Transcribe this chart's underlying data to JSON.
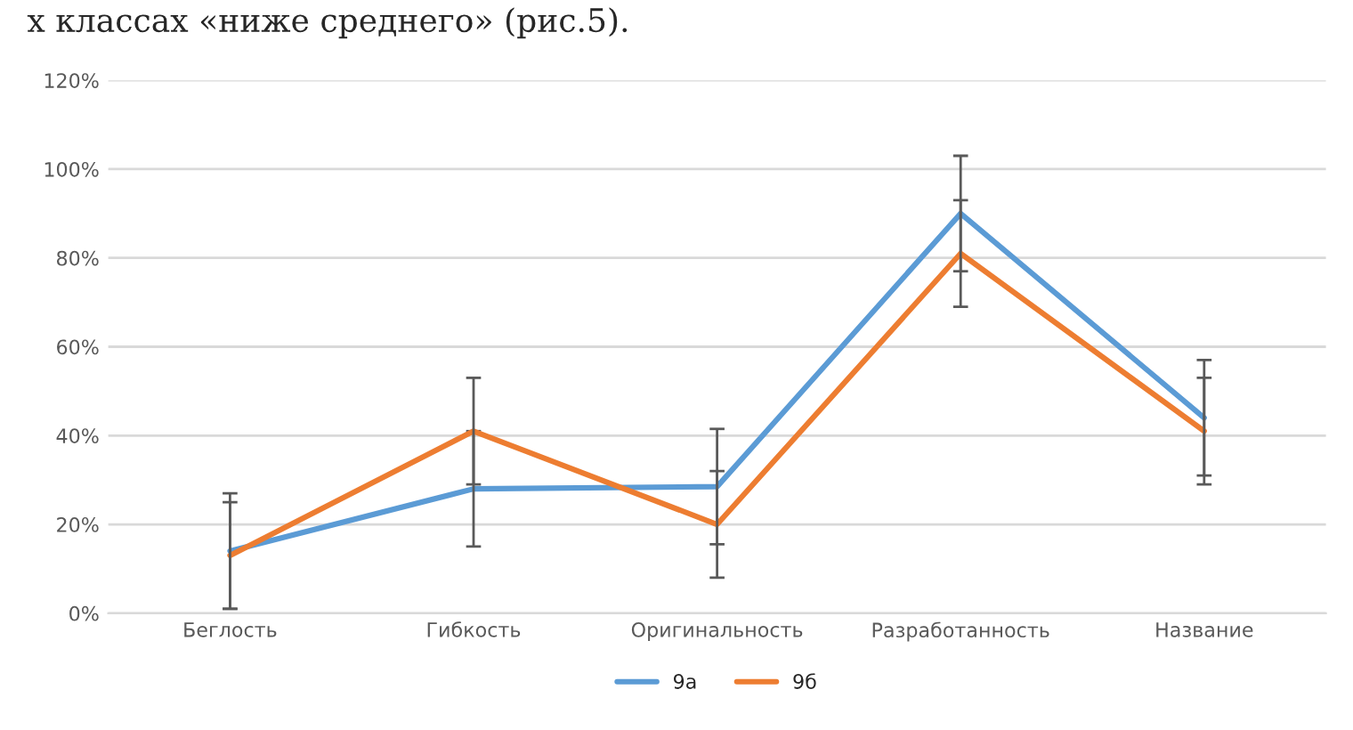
{
  "chart_data": {
    "type": "line",
    "categories": [
      "Беглость",
      "Гибкость",
      "Оригинальность",
      "Разработанность",
      "Название"
    ],
    "series": [
      {
        "name": "9а",
        "color": "#5b9bd5",
        "values": [
          0.14,
          0.28,
          0.285,
          0.9,
          0.44
        ],
        "errors": [
          0.13,
          0.13,
          0.13,
          0.13,
          0.13
        ]
      },
      {
        "name": "9б",
        "color": "#ed7d31",
        "values": [
          0.13,
          0.41,
          0.2,
          0.81,
          0.41
        ],
        "errors": [
          0.12,
          0.12,
          0.12,
          0.12,
          0.12
        ]
      }
    ],
    "ylim": [
      0,
      1.2
    ],
    "yticks": [
      {
        "value": 0,
        "label": "0%"
      },
      {
        "value": 0.2,
        "label": "20%"
      },
      {
        "value": 0.4,
        "label": "40%"
      },
      {
        "value": 0.6,
        "label": "60%"
      },
      {
        "value": 0.8,
        "label": "80%"
      },
      {
        "value": 1.0,
        "label": "100%"
      },
      {
        "value": 1.2,
        "label": "120%"
      }
    ],
    "grid": "y",
    "legend": "bottom",
    "marker": "none",
    "line_style": "solid",
    "annotations": [
      "х классах «ниже среднего» (рис.5)."
    ]
  }
}
